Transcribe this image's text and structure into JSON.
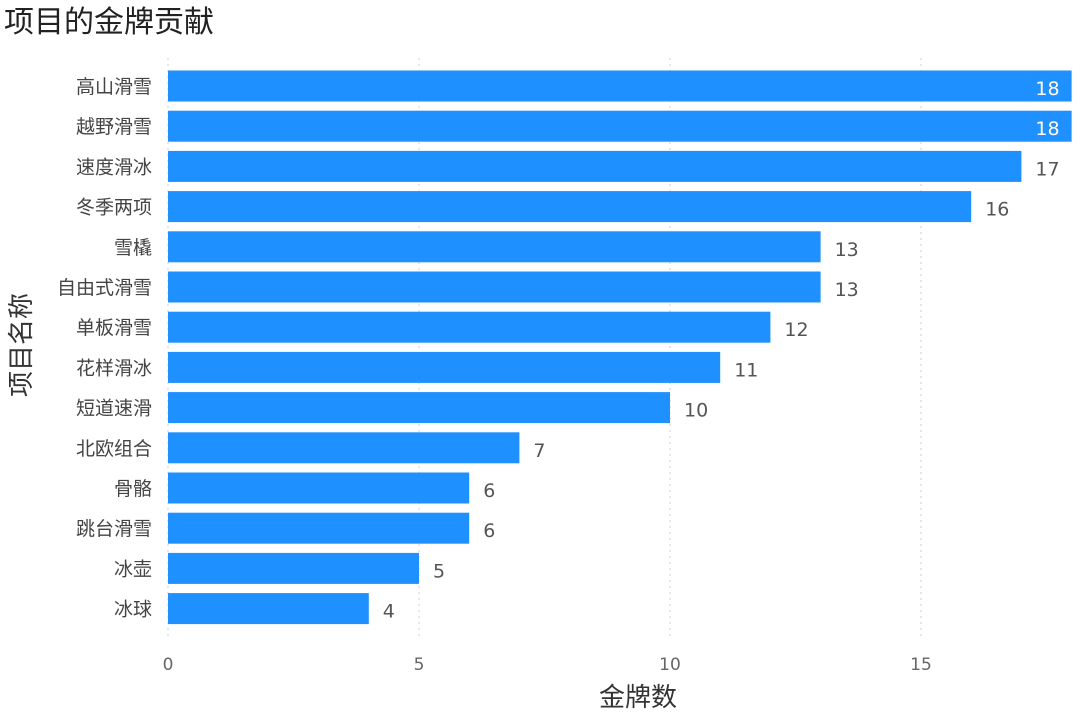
{
  "chart_data": {
    "type": "bar",
    "orientation": "horizontal",
    "title": "项目的金牌贡献",
    "xlabel": "金牌数",
    "ylabel": "项目名称",
    "xlim": [
      0,
      18
    ],
    "xticks": [
      0,
      5,
      10,
      15
    ],
    "grid": "vertical dotted",
    "bar_color": "#1E90FF",
    "categories": [
      "高山滑雪",
      "越野滑雪",
      "速度滑冰",
      "冬季两项",
      "雪橇",
      "自由式滑雪",
      "单板滑雪",
      "花样滑冰",
      "短道速滑",
      "北欧组合",
      "骨骼",
      "跳台滑雪",
      "冰壶",
      "冰球"
    ],
    "values": [
      18,
      18,
      17,
      16,
      13,
      13,
      12,
      11,
      10,
      7,
      6,
      6,
      5,
      4
    ]
  }
}
